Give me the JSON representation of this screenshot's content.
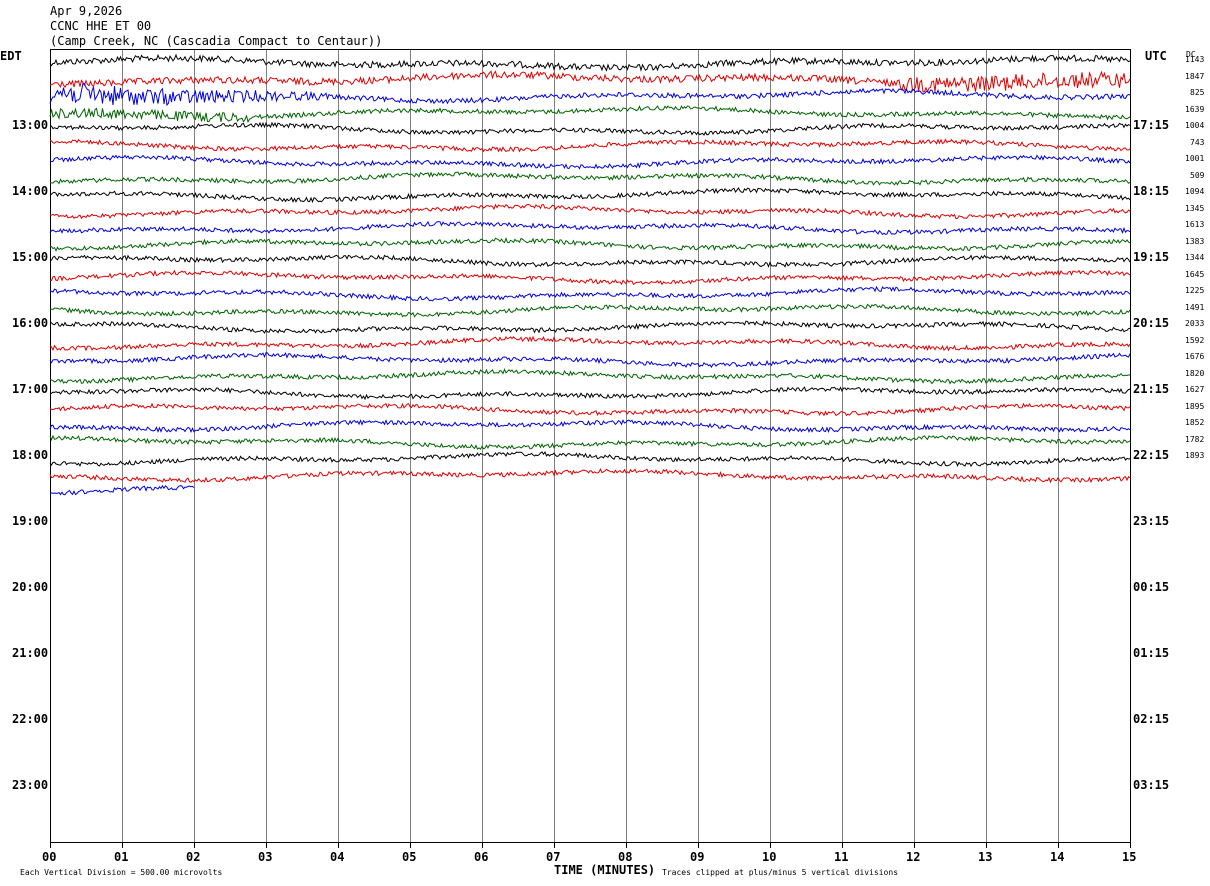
{
  "header": {
    "date": "Apr 9,2026",
    "station": "CCNC HHE ET 00",
    "location": "(Camp Creek, NC (Cascadia Compact to Centaur))"
  },
  "axes": {
    "left_tz": "EDT",
    "right_tz": "UTC",
    "dc_label": "DC",
    "xlabel": "TIME (MINUTES)"
  },
  "footer": {
    "scale": "Each Vertical Division = 500.00 microvolts",
    "clip": "Traces clipped at plus/minus 5 vertical divisions"
  },
  "colors": {
    "black": "#000000",
    "red": "#e00000",
    "blue": "#0000e0",
    "green": "#006400",
    "grid": "#808080"
  },
  "chart_data": {
    "type": "line",
    "title": "CCNC HHE ET 00",
    "xlabel": "TIME (MINUTES)",
    "xlim": [
      0,
      15
    ],
    "x_ticks": [
      "00",
      "01",
      "02",
      "03",
      "04",
      "05",
      "06",
      "07",
      "08",
      "09",
      "10",
      "11",
      "12",
      "13",
      "14",
      "15"
    ],
    "left_hour_labels": [
      "13:00",
      "14:00",
      "15:00",
      "16:00",
      "17:00",
      "18:00",
      "19:00",
      "20:00",
      "21:00",
      "22:00",
      "23:00"
    ],
    "right_hour_labels": [
      "17:15",
      "18:15",
      "19:15",
      "20:15",
      "21:15",
      "22:15",
      "23:15",
      "00:15",
      "01:15",
      "02:15",
      "03:15"
    ],
    "trace_colors": [
      "black",
      "red",
      "blue",
      "green"
    ],
    "trace_minutes": [
      15,
      15,
      15,
      15,
      15,
      15,
      15,
      15,
      15,
      15,
      15,
      15,
      15,
      15,
      15,
      15,
      15,
      15,
      15,
      15,
      15,
      15,
      15,
      15,
      15,
      15,
      2
    ],
    "dc_offsets": [
      "1143",
      "1847",
      "825",
      "1639",
      "1004",
      "743",
      "1001",
      "509",
      "1094",
      "1345",
      "1613",
      "1383",
      "1344",
      "1645",
      "1225",
      "1491",
      "2033",
      "1592",
      "1676",
      "1820",
      "1627",
      "1895",
      "1852",
      "1782",
      "1893"
    ]
  }
}
